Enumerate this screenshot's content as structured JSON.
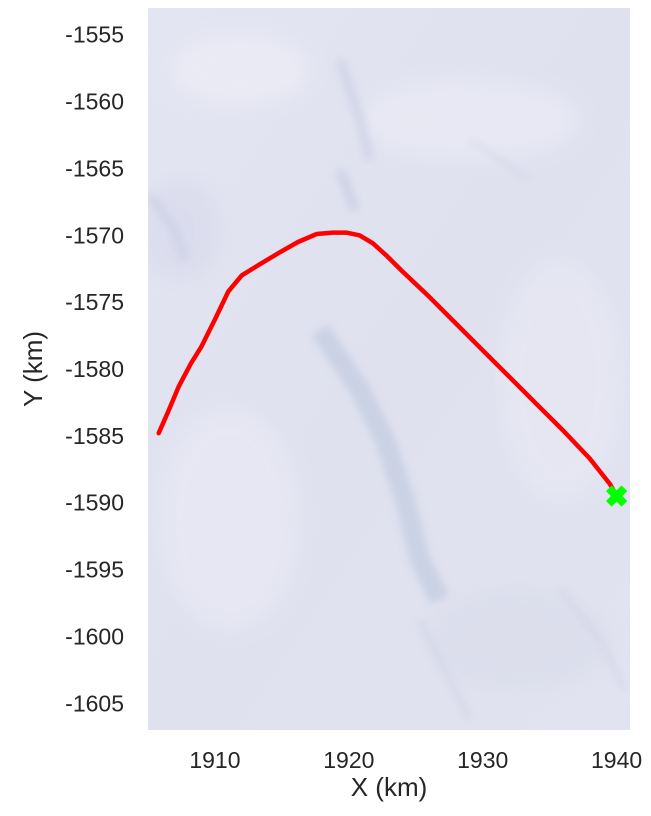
{
  "chart_data": {
    "type": "line",
    "title": "",
    "xlabel": "X (km)",
    "ylabel": "Y (km)",
    "xlim": [
      1905,
      1941
    ],
    "ylim": [
      -1607,
      -1553
    ],
    "x_ticks": [
      1910,
      1920,
      1930,
      1940
    ],
    "y_ticks": [
      -1555,
      -1560,
      -1565,
      -1570,
      -1575,
      -1580,
      -1585,
      -1590,
      -1595,
      -1600,
      -1605
    ],
    "grid": false,
    "background": "satellite ice imagery (light blue-grey)",
    "series": [
      {
        "type": "line",
        "color": "#ff0000",
        "x": [
          1905.8,
          1906.5,
          1907.3,
          1908.2,
          1909.0,
          1910.0,
          1911.0,
          1912.0,
          1913.3,
          1914.8,
          1916.2,
          1917.6,
          1918.8,
          1919.8,
          1920.8,
          1921.8,
          1922.8,
          1924.0,
          1926.0,
          1928.0,
          1930.0,
          1932.0,
          1934.0,
          1936.0,
          1938.0,
          1939.5,
          1940.0
        ],
        "y": [
          -1584.8,
          -1583.2,
          -1581.3,
          -1579.6,
          -1578.3,
          -1576.3,
          -1574.2,
          -1573.0,
          -1572.2,
          -1571.3,
          -1570.5,
          -1569.9,
          -1569.8,
          -1569.8,
          -1570.0,
          -1570.6,
          -1571.5,
          -1572.7,
          -1574.6,
          -1576.6,
          -1578.6,
          -1580.6,
          -1582.6,
          -1584.6,
          -1586.7,
          -1588.6,
          -1589.5
        ]
      },
      {
        "type": "scatter",
        "marker": "X",
        "color": "#00ff00",
        "x": [
          1940.0
        ],
        "y": [
          -1589.5
        ]
      }
    ]
  }
}
